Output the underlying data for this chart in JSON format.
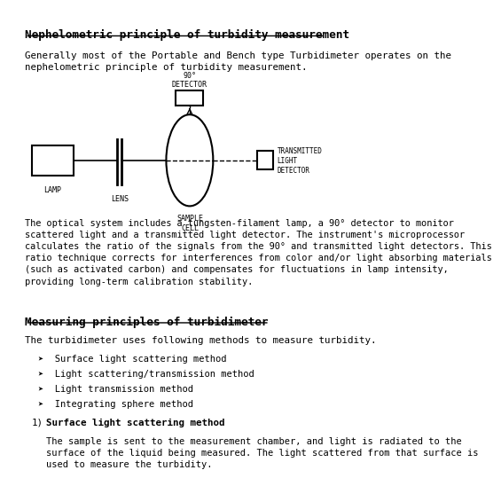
{
  "title": "Nephelometric principle of turbidity measurement",
  "para1": "Generally most of the Portable and Bench type Turbidimeter operates on the\nnephelometric principle of turbidity measurement.",
  "section2_title": "Measuring principles of turbidimeter",
  "para2": "The turbidimeter uses following methods to measure turbidity.",
  "bullets": [
    "Surface light scattering method",
    "Light scattering/transmission method",
    "Light transmission method",
    "Integrating sphere method"
  ],
  "subsection_title": "Surface light scattering method",
  "subsection_number": "1)",
  "subsection_text": "The sample is sent to the measurement chamber, and light is radiated to the\nsurface of the liquid being measured. The light scattered from that surface is\nused to measure the turbidity.",
  "diagram_caption": "The optical system includes a tungsten-filament lamp, a 90° detector to monitor\nscattered light and a transmitted light detector. The instrument's microprocessor\ncalculates the ratio of the signals from the 90° and transmitted light detectors. This\nratio technique corrects for interferences from color and/or light absorbing materials\n(such as activated carbon) and compensates for fluctuations in lamp intensity,\nproviding long-term calibration stability.",
  "bg_color": "#ffffff",
  "text_color": "#000000"
}
